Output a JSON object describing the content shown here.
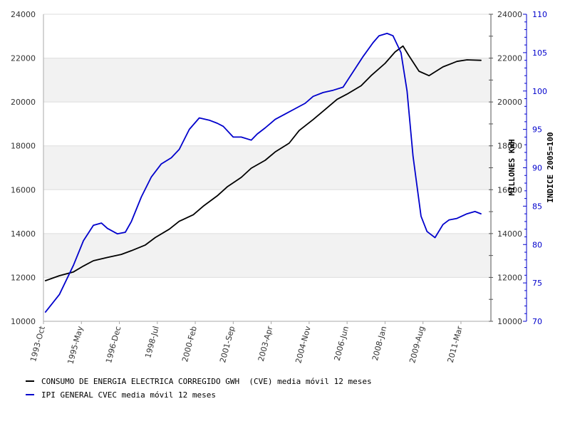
{
  "chart_data": {
    "type": "line",
    "grid": true,
    "band_color": "#f2f2f2",
    "legend_position": "bottom-left",
    "x_tick_labels": [
      "1993-Oct",
      "1995-May",
      "1996-Dec",
      "1998-Jul",
      "2000-Feb",
      "2001-Sep",
      "2003-Apr",
      "2004-Nov",
      "2006-Jun",
      "2008-Jan",
      "2009-Aug",
      "2011-Mar"
    ],
    "x_range": [
      "1993-Oct",
      "2012-Jun"
    ],
    "y_left": {
      "range": [
        10000,
        24000
      ],
      "ticks": [
        "10000",
        "12000",
        "14000",
        "16000",
        "18000",
        "20000",
        "22000",
        "24000"
      ]
    },
    "y_right1": {
      "label": "MILLONES KWH",
      "range": [
        10000,
        24000
      ],
      "ticks": [
        "10000",
        "12000",
        "14000",
        "16000",
        "18000",
        "20000",
        "22000",
        "24000"
      ]
    },
    "y_right2": {
      "label": "INDICE 2005=100",
      "range": [
        70,
        110
      ],
      "ticks": [
        "70",
        "75",
        "80",
        "85",
        "90",
        "95",
        "100",
        "105",
        "110"
      ]
    },
    "series": [
      {
        "name": "CONSUMO DE ENERGIA ELECTRICA CORREGIDO GWH  (CVE) media móvil 12 meses",
        "axis": "kwh",
        "color": "#000000",
        "x": [
          "1993-11",
          "1994-06",
          "1995-01",
          "1995-06",
          "1995-11",
          "1996-06",
          "1997-01",
          "1997-06",
          "1998-01",
          "1998-06",
          "1999-01",
          "1999-06",
          "2000-01",
          "2000-06",
          "2001-01",
          "2001-06",
          "2002-01",
          "2002-06",
          "2003-01",
          "2003-06",
          "2004-01",
          "2004-06",
          "2005-01",
          "2005-06",
          "2006-01",
          "2006-06",
          "2007-01",
          "2007-06",
          "2008-01",
          "2008-06",
          "2008-10",
          "2009-01",
          "2009-06",
          "2009-11",
          "2010-06",
          "2011-01",
          "2011-06",
          "2012-01"
        ],
        "values": [
          11850,
          12080,
          12250,
          12520,
          12760,
          12910,
          13050,
          13220,
          13480,
          13820,
          14200,
          14560,
          14860,
          15250,
          15720,
          16130,
          16560,
          16980,
          17340,
          17720,
          18120,
          18700,
          19200,
          19580,
          20120,
          20360,
          20740,
          21200,
          21760,
          22280,
          22550,
          22100,
          21400,
          21200,
          21600,
          21850,
          21920,
          21900
        ]
      },
      {
        "name": "IPI GENERAL CVEC media móvil 12 meses",
        "axis": "indice",
        "color": "#0000cc",
        "x": [
          "1993-11",
          "1994-06",
          "1995-01",
          "1995-06",
          "1995-11",
          "1996-03",
          "1996-06",
          "1996-11",
          "1997-03",
          "1997-06",
          "1997-11",
          "1998-04",
          "1998-09",
          "1999-02",
          "1999-06",
          "1999-11",
          "2000-04",
          "2000-09",
          "2001-01",
          "2001-04",
          "2001-09",
          "2002-01",
          "2002-06",
          "2002-09",
          "2003-01",
          "2003-06",
          "2003-11",
          "2004-04",
          "2004-09",
          "2005-01",
          "2005-06",
          "2005-11",
          "2006-04",
          "2006-09",
          "2007-02",
          "2007-07",
          "2007-10",
          "2008-02",
          "2008-05",
          "2008-09",
          "2008-12",
          "2009-03",
          "2009-07",
          "2009-10",
          "2010-02",
          "2010-06",
          "2010-09",
          "2011-01",
          "2011-06",
          "2011-10",
          "2012-01"
        ],
        "values": [
          71.2,
          73.5,
          77.3,
          80.5,
          82.5,
          82.8,
          82.1,
          81.4,
          81.6,
          83.0,
          86.2,
          88.8,
          90.5,
          91.3,
          92.4,
          95.0,
          96.5,
          96.2,
          95.8,
          95.4,
          94.0,
          94.0,
          93.6,
          94.4,
          95.2,
          96.3,
          97.0,
          97.7,
          98.4,
          99.3,
          99.8,
          100.1,
          100.5,
          102.5,
          104.5,
          106.3,
          107.2,
          107.5,
          107.2,
          105.0,
          100.0,
          91.5,
          83.7,
          81.7,
          80.9,
          82.6,
          83.2,
          83.4,
          84.0,
          84.3,
          84.0
        ]
      }
    ]
  }
}
